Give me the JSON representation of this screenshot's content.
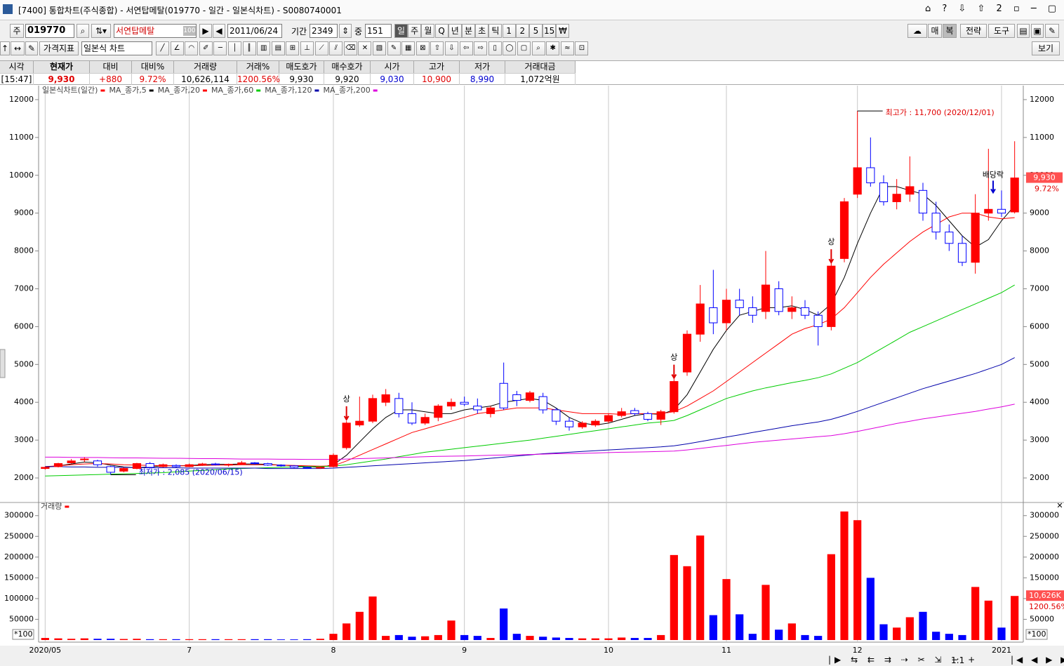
{
  "window": {
    "title": "[7400] 통합차트(주식종합) - 서연탑메탈(019770 - 일간 - 일본식차트) - S0080740001"
  },
  "toolbar": {
    "market": "주",
    "code": "019770",
    "name": "서연탑메탈",
    "name_badge": "100",
    "date": "2011/06/24",
    "period_label": "기간",
    "period": "2349",
    "count_label": "중",
    "count": "151",
    "intervals": [
      "일",
      "주",
      "월",
      "Q",
      "년",
      "분",
      "초",
      "틱",
      "1",
      "2",
      "5",
      "15",
      "₩"
    ],
    "right_buttons": [
      "매",
      "복",
      "전략",
      "도구"
    ],
    "indicator": "가격지표",
    "chart_style": "일본식 차트",
    "view": "보기",
    "zoom": "1:1"
  },
  "quote": {
    "headers": [
      "시각",
      "현재가",
      "대비",
      "대비%",
      "거래량",
      "거래%",
      "매도호가",
      "매수호가",
      "시가",
      "고가",
      "저가",
      "거래대금"
    ],
    "values": [
      "[15:47]",
      "9,930",
      "+880",
      "9.72%",
      "10,626,114",
      "1200.56%",
      "9,930",
      "9,920",
      "9,030",
      "10,900",
      "8,990",
      "1,072억원"
    ]
  },
  "chart_data": [
    {
      "type": "candlestick",
      "title": "일본식차트(일간)",
      "categories": [
        "2020/05",
        null,
        null,
        null,
        null,
        null,
        null,
        null,
        null,
        null,
        null,
        "7",
        null,
        null,
        null,
        null,
        null,
        null,
        null,
        null,
        null,
        null,
        "8",
        null,
        null,
        null,
        null,
        null,
        null,
        null,
        null,
        null,
        "9",
        null,
        null,
        null,
        null,
        null,
        null,
        null,
        null,
        null,
        null,
        "10",
        null,
        null,
        null,
        null,
        null,
        null,
        null,
        null,
        "11",
        null,
        null,
        null,
        null,
        null,
        null,
        null,
        null,
        null,
        "12",
        null,
        null,
        null,
        null,
        null,
        null,
        null,
        null,
        null,
        null,
        "2021",
        null
      ],
      "open": [
        2250,
        2300,
        2400,
        2480,
        2450,
        2300,
        2180,
        2250,
        2380,
        2300,
        2330,
        2300,
        2350,
        2370,
        2340,
        2360,
        2400,
        2380,
        2340,
        2320,
        2280,
        2260,
        2300,
        2800,
        3400,
        3500,
        4000,
        4100,
        3700,
        3450,
        3600,
        3900,
        4000,
        3900,
        3700,
        4500,
        4200,
        4050,
        4150,
        3800,
        3500,
        3350,
        3400,
        3500,
        3650,
        3780,
        3700,
        3550,
        3750,
        4800,
        5800,
        6500,
        6100,
        6700,
        6500,
        6400,
        7000,
        6400,
        6500,
        6300,
        6000,
        7800,
        9500,
        10200,
        9800,
        9300,
        9500,
        9600,
        9000,
        8500,
        8200,
        7700,
        9000,
        9100,
        9030
      ],
      "high": [
        2300,
        2400,
        2500,
        2550,
        2480,
        2320,
        2280,
        2400,
        2420,
        2380,
        2360,
        2380,
        2400,
        2400,
        2380,
        2450,
        2420,
        2400,
        2360,
        2340,
        2300,
        2300,
        2650,
        3500,
        4150,
        4200,
        4350,
        4250,
        4000,
        3700,
        3950,
        4100,
        4150,
        4100,
        3900,
        5050,
        4300,
        4300,
        4250,
        3850,
        3600,
        3500,
        3550,
        3700,
        3850,
        3850,
        3750,
        3800,
        4700,
        5900,
        7100,
        7500,
        7000,
        7000,
        6800,
        8000,
        7200,
        6800,
        6700,
        6400,
        7700,
        9400,
        11700,
        11000,
        10000,
        9900,
        10500,
        9800,
        9300,
        8700,
        8400,
        9500,
        10700,
        9600,
        10900
      ],
      "low": [
        2220,
        2280,
        2380,
        2420,
        2300,
        2085,
        2150,
        2230,
        2250,
        2280,
        2280,
        2290,
        2320,
        2330,
        2300,
        2350,
        2350,
        2320,
        2300,
        2260,
        2240,
        2240,
        2280,
        2750,
        3350,
        3450,
        3900,
        3600,
        3400,
        3400,
        3500,
        3800,
        3900,
        3700,
        3600,
        3800,
        3900,
        4000,
        3700,
        3400,
        3250,
        3300,
        3350,
        3450,
        3600,
        3650,
        3500,
        3400,
        3700,
        4700,
        5600,
        5800,
        5900,
        6300,
        6100,
        6200,
        6300,
        6200,
        6200,
        5500,
        5900,
        7700,
        9400,
        9700,
        9200,
        9100,
        9300,
        8800,
        8300,
        8000,
        7600,
        7400,
        8800,
        8900,
        8990
      ],
      "close": [
        2280,
        2380,
        2450,
        2500,
        2350,
        2150,
        2250,
        2380,
        2280,
        2350,
        2300,
        2350,
        2370,
        2350,
        2360,
        2400,
        2380,
        2340,
        2320,
        2280,
        2260,
        2280,
        2600,
        3450,
        3500,
        4100,
        4200,
        3700,
        3450,
        3600,
        3900,
        4000,
        3950,
        3800,
        3850,
        3850,
        4050,
        4250,
        3800,
        3500,
        3350,
        3450,
        3500,
        3650,
        3750,
        3700,
        3550,
        3750,
        4550,
        5800,
        6600,
        6100,
        6700,
        6500,
        6300,
        7100,
        6400,
        6500,
        6300,
        6000,
        7600,
        9300,
        10200,
        9800,
        9300,
        9500,
        9700,
        9000,
        8500,
        8200,
        7700,
        9000,
        9100,
        9000,
        9930
      ],
      "up_color": "#ff0000",
      "down_color": "#0000ff",
      "series": [
        {
          "name": "MA_종가,5",
          "color": "#000000",
          "values": [
            2280,
            2320,
            2370,
            2420,
            2400,
            2340,
            2290,
            2270,
            2290,
            2320,
            2320,
            2330,
            2350,
            2360,
            2360,
            2370,
            2370,
            2360,
            2340,
            2320,
            2300,
            2280,
            2350,
            2600,
            2950,
            3300,
            3600,
            3800,
            3800,
            3750,
            3700,
            3700,
            3800,
            3850,
            3900,
            4000,
            4050,
            4100,
            4050,
            3850,
            3600,
            3450,
            3400,
            3450,
            3550,
            3650,
            3700,
            3680,
            3800,
            4200,
            4800,
            5400,
            5900,
            6300,
            6400,
            6500,
            6500,
            6550,
            6450,
            6300,
            6600,
            7300,
            8200,
            9000,
            9700,
            9700,
            9600,
            9500,
            9200,
            8800,
            8400,
            8100,
            8300,
            8800,
            9200
          ]
        },
        {
          "name": "MA_종가,20",
          "color": "#ff0000",
          "values": [
            2300,
            2320,
            2350,
            2370,
            2380,
            2370,
            2350,
            2340,
            2330,
            2320,
            2320,
            2320,
            2330,
            2340,
            2340,
            2350,
            2350,
            2350,
            2340,
            2330,
            2320,
            2310,
            2320,
            2450,
            2600,
            2750,
            2900,
            3050,
            3200,
            3300,
            3400,
            3500,
            3600,
            3700,
            3750,
            3800,
            3850,
            3850,
            3850,
            3800,
            3750,
            3700,
            3700,
            3700,
            3680,
            3700,
            3700,
            3700,
            3750,
            3900,
            4100,
            4300,
            4550,
            4800,
            5050,
            5300,
            5550,
            5800,
            5950,
            6050,
            6200,
            6500,
            6900,
            7300,
            7650,
            7950,
            8250,
            8500,
            8700,
            8900,
            9000,
            9000,
            8900,
            8850,
            8880
          ]
        },
        {
          "name": "MA_종가,60",
          "color": "#00cc00",
          "values": [
            2050,
            2060,
            2070,
            2080,
            2090,
            2100,
            2110,
            2120,
            2130,
            2140,
            2160,
            2180,
            2200,
            2220,
            2240,
            2250,
            2260,
            2270,
            2280,
            2290,
            2300,
            2300,
            2310,
            2350,
            2400,
            2450,
            2500,
            2560,
            2620,
            2680,
            2720,
            2760,
            2800,
            2840,
            2880,
            2920,
            2960,
            3000,
            3050,
            3100,
            3150,
            3200,
            3250,
            3300,
            3350,
            3400,
            3450,
            3480,
            3520,
            3650,
            3800,
            3950,
            4100,
            4200,
            4300,
            4380,
            4450,
            4520,
            4580,
            4650,
            4750,
            4900,
            5050,
            5250,
            5450,
            5650,
            5850,
            6000,
            6150,
            6300,
            6450,
            6600,
            6750,
            6900,
            7100
          ]
        },
        {
          "name": "MA_종가,120",
          "color": "#0000aa",
          "values": [
            2300,
            2300,
            2290,
            2290,
            2280,
            2280,
            2280,
            2270,
            2270,
            2270,
            2270,
            2260,
            2260,
            2260,
            2260,
            2260,
            2260,
            2250,
            2250,
            2250,
            2250,
            2250,
            2260,
            2280,
            2300,
            2320,
            2340,
            2360,
            2380,
            2400,
            2420,
            2440,
            2460,
            2490,
            2520,
            2550,
            2580,
            2610,
            2640,
            2660,
            2680,
            2700,
            2720,
            2740,
            2760,
            2780,
            2800,
            2820,
            2850,
            2900,
            2960,
            3020,
            3080,
            3140,
            3200,
            3260,
            3320,
            3380,
            3430,
            3480,
            3550,
            3650,
            3760,
            3880,
            4000,
            4120,
            4240,
            4360,
            4460,
            4560,
            4660,
            4760,
            4880,
            5000,
            5180
          ]
        },
        {
          "name": "MA_종가,200",
          "color": "#dd00dd",
          "values": [
            2550,
            2550,
            2545,
            2540,
            2540,
            2535,
            2530,
            2530,
            2525,
            2520,
            2520,
            2515,
            2510,
            2510,
            2505,
            2500,
            2500,
            2500,
            2495,
            2495,
            2490,
            2490,
            2490,
            2500,
            2510,
            2520,
            2530,
            2540,
            2550,
            2560,
            2570,
            2575,
            2580,
            2590,
            2600,
            2605,
            2610,
            2620,
            2630,
            2640,
            2645,
            2650,
            2660,
            2670,
            2680,
            2685,
            2690,
            2700,
            2710,
            2740,
            2780,
            2820,
            2860,
            2900,
            2940,
            2970,
            3000,
            3030,
            3060,
            3090,
            3120,
            3170,
            3230,
            3300,
            3370,
            3440,
            3500,
            3560,
            3610,
            3660,
            3710,
            3760,
            3820,
            3880,
            3950
          ]
        }
      ],
      "ylim": [
        1370,
        12370
      ],
      "yticks": [
        2000,
        3000,
        4000,
        5000,
        6000,
        7000,
        8000,
        9000,
        10000,
        11000,
        12000
      ],
      "annotations": {
        "high": "최고가 : 11,700 (2020/12/01)",
        "low": "최저가 : 2,085 (2020/06/15)",
        "limit_up": "상",
        "ex_dividend": "배당락"
      },
      "last_label": "9,930",
      "last_change": "9.72%"
    },
    {
      "type": "bar",
      "title": "거래량",
      "color": "#ff0000",
      "values": [
        5000,
        4000,
        3000,
        4000,
        3000,
        3000,
        2500,
        3000,
        2000,
        2000,
        2000,
        2000,
        2000,
        2000,
        2000,
        2000,
        2000,
        2000,
        1500,
        1500,
        2000,
        3000,
        15000,
        40000,
        68000,
        105000,
        10000,
        12000,
        8000,
        9000,
        12000,
        47000,
        12000,
        10000,
        5000,
        76000,
        15000,
        10000,
        8000,
        6000,
        5000,
        4000,
        4000,
        4000,
        6000,
        5000,
        5000,
        12000,
        205000,
        178000,
        252000,
        60000,
        147000,
        62000,
        15000,
        133000,
        25000,
        40000,
        12000,
        10000,
        207000,
        310000,
        289000,
        150000,
        38000,
        30000,
        55000,
        68000,
        20000,
        15000,
        12000,
        128000,
        95000,
        30000,
        106261
      ],
      "ylim": [
        0,
        330000
      ],
      "yticks": [
        50000,
        100000,
        150000,
        200000,
        250000,
        300000
      ],
      "unit_label": "*100",
      "last_label": "10,626K",
      "last_ratio": "1200.56%"
    }
  ]
}
